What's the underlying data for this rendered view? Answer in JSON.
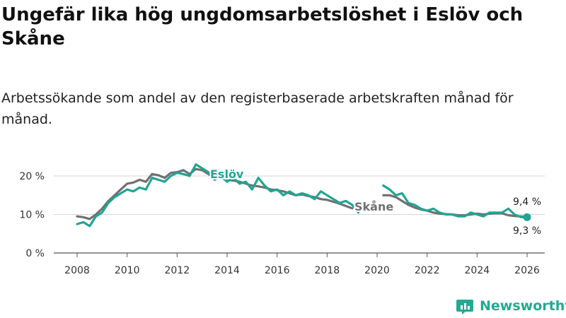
{
  "title": "Ungefär lika hög ungdomsarbetslöshet i Eslöv och Skåne",
  "subtitle": "Arbetssökande som andel av den registerbaserade arbetskraften månad för månad.",
  "brand": {
    "name": "Newsworthy",
    "color": "#24a892",
    "icon": "newsworthy-logo-icon"
  },
  "chart_data": {
    "type": "line",
    "title": "Ungefär lika hög ungdomsarbetslöshet i Eslöv och Skåne",
    "subtitle": "Arbetssökande som andel av den registerbaserade arbetskraften månad för månad.",
    "xlabel": "",
    "ylabel": "",
    "xlim": [
      2007.5,
      2026.5
    ],
    "ylim": [
      0,
      22
    ],
    "x_ticks": [
      2008,
      2010,
      2012,
      2014,
      2016,
      2018,
      2020,
      2022,
      2024,
      2026
    ],
    "x_tick_labels": [
      "2008",
      "2010",
      "2012",
      "2014",
      "2016",
      "2018",
      "2020",
      "2022",
      "2024",
      "2026"
    ],
    "y_ticks": [
      0,
      10,
      20
    ],
    "y_tick_labels": [
      "0 %",
      "10 %",
      "20 %"
    ],
    "grid": "horizontal",
    "legend": "inline labels",
    "series": [
      {
        "name": "Skåne",
        "color": "#707070",
        "points": [
          [
            2008.0,
            9.5
          ],
          [
            2008.25,
            9.3
          ],
          [
            2008.5,
            8.8
          ],
          [
            2008.75,
            10.0
          ],
          [
            2009.0,
            11.5
          ],
          [
            2009.25,
            13.5
          ],
          [
            2009.5,
            15.0
          ],
          [
            2009.75,
            16.5
          ],
          [
            2010.0,
            18.0
          ],
          [
            2010.25,
            18.3
          ],
          [
            2010.5,
            19.0
          ],
          [
            2010.75,
            18.5
          ],
          [
            2011.0,
            20.5
          ],
          [
            2011.25,
            20.2
          ],
          [
            2011.5,
            19.5
          ],
          [
            2011.75,
            20.8
          ],
          [
            2012.0,
            21.0
          ],
          [
            2012.25,
            21.5
          ],
          [
            2012.5,
            20.5
          ],
          [
            2012.75,
            21.8
          ],
          [
            2013.0,
            21.5
          ],
          [
            2013.25,
            20.5
          ],
          [
            2013.5,
            19.5
          ],
          [
            2013.75,
            19.5
          ],
          [
            2014.0,
            19.0
          ],
          [
            2014.25,
            18.8
          ],
          [
            2014.5,
            18.5
          ],
          [
            2014.75,
            18.0
          ],
          [
            2015.0,
            17.5
          ],
          [
            2015.25,
            17.3
          ],
          [
            2015.5,
            17.0
          ],
          [
            2015.75,
            16.5
          ],
          [
            2016.0,
            16.3
          ],
          [
            2016.25,
            16.0
          ],
          [
            2016.5,
            15.5
          ],
          [
            2016.75,
            15.0
          ],
          [
            2017.0,
            15.2
          ],
          [
            2017.25,
            14.8
          ],
          [
            2017.5,
            14.5
          ],
          [
            2017.75,
            14.0
          ],
          [
            2018.0,
            13.8
          ],
          [
            2018.25,
            13.3
          ],
          [
            2018.5,
            12.8
          ],
          [
            2018.75,
            12.2
          ],
          [
            2019.0,
            11.6
          ],
          [
            2020.25,
            15.0
          ],
          [
            2020.5,
            15.0
          ],
          [
            2020.75,
            14.5
          ],
          [
            2021.0,
            13.5
          ],
          [
            2021.25,
            12.5
          ],
          [
            2021.5,
            11.8
          ],
          [
            2021.75,
            11.3
          ],
          [
            2022.0,
            11.0
          ],
          [
            2022.25,
            10.5
          ],
          [
            2022.5,
            10.2
          ],
          [
            2022.75,
            10.1
          ],
          [
            2023.0,
            10.0
          ],
          [
            2023.25,
            9.8
          ],
          [
            2023.5,
            9.8
          ],
          [
            2023.75,
            10.0
          ],
          [
            2024.0,
            10.2
          ],
          [
            2024.25,
            10.0
          ],
          [
            2024.5,
            10.2
          ],
          [
            2024.75,
            10.3
          ],
          [
            2025.0,
            10.3
          ],
          [
            2025.25,
            9.8
          ],
          [
            2025.5,
            9.6
          ],
          [
            2025.75,
            9.5
          ],
          [
            2026.0,
            9.4
          ]
        ],
        "label_text": "Skåne",
        "end_value": 9.4,
        "end_label": "9,4 %"
      },
      {
        "name": "Eslöv",
        "color": "#20a594",
        "points": [
          [
            2008.0,
            7.5
          ],
          [
            2008.25,
            8.0
          ],
          [
            2008.5,
            7.0
          ],
          [
            2008.75,
            9.5
          ],
          [
            2009.0,
            10.5
          ],
          [
            2009.25,
            13.0
          ],
          [
            2009.5,
            14.5
          ],
          [
            2009.75,
            15.5
          ],
          [
            2010.0,
            16.5
          ],
          [
            2010.25,
            16.0
          ],
          [
            2010.5,
            17.0
          ],
          [
            2010.75,
            16.5
          ],
          [
            2011.0,
            19.5
          ],
          [
            2011.25,
            19.0
          ],
          [
            2011.5,
            18.5
          ],
          [
            2011.75,
            20.0
          ],
          [
            2012.0,
            20.8
          ],
          [
            2012.25,
            20.5
          ],
          [
            2012.5,
            20.0
          ],
          [
            2012.75,
            23.0
          ],
          [
            2013.0,
            22.0
          ],
          [
            2013.25,
            21.0
          ],
          [
            2013.5,
            19.0
          ],
          [
            2013.75,
            20.0
          ],
          [
            2014.0,
            18.5
          ],
          [
            2014.25,
            19.5
          ],
          [
            2014.5,
            18.0
          ],
          [
            2014.75,
            18.5
          ],
          [
            2015.0,
            16.5
          ],
          [
            2015.25,
            19.5
          ],
          [
            2015.5,
            17.5
          ],
          [
            2015.75,
            16.0
          ],
          [
            2016.0,
            16.5
          ],
          [
            2016.25,
            15.0
          ],
          [
            2016.5,
            16.0
          ],
          [
            2016.75,
            15.0
          ],
          [
            2017.0,
            15.5
          ],
          [
            2017.25,
            15.0
          ],
          [
            2017.5,
            14.0
          ],
          [
            2017.75,
            16.0
          ],
          [
            2018.0,
            15.0
          ],
          [
            2018.25,
            14.0
          ],
          [
            2018.5,
            13.0
          ],
          [
            2018.75,
            13.5
          ],
          [
            2019.0,
            12.5
          ],
          [
            2019.25,
            10.5
          ],
          [
            2020.25,
            17.5
          ],
          [
            2020.5,
            16.5
          ],
          [
            2020.75,
            15.0
          ],
          [
            2021.0,
            15.5
          ],
          [
            2021.25,
            13.0
          ],
          [
            2021.5,
            12.5
          ],
          [
            2021.75,
            11.5
          ],
          [
            2022.0,
            11.0
          ],
          [
            2022.25,
            11.5
          ],
          [
            2022.5,
            10.5
          ],
          [
            2022.75,
            10.0
          ],
          [
            2023.0,
            10.0
          ],
          [
            2023.25,
            9.5
          ],
          [
            2023.5,
            9.5
          ],
          [
            2023.75,
            10.5
          ],
          [
            2024.0,
            10.0
          ],
          [
            2024.25,
            9.5
          ],
          [
            2024.5,
            10.5
          ],
          [
            2024.75,
            10.5
          ],
          [
            2025.0,
            10.5
          ],
          [
            2025.25,
            11.5
          ],
          [
            2025.5,
            10.0
          ],
          [
            2025.75,
            9.3
          ],
          [
            2026.0,
            9.3
          ]
        ],
        "label_text": "Eslöv",
        "end_value": 9.3,
        "end_label": "9,3 %"
      }
    ]
  }
}
